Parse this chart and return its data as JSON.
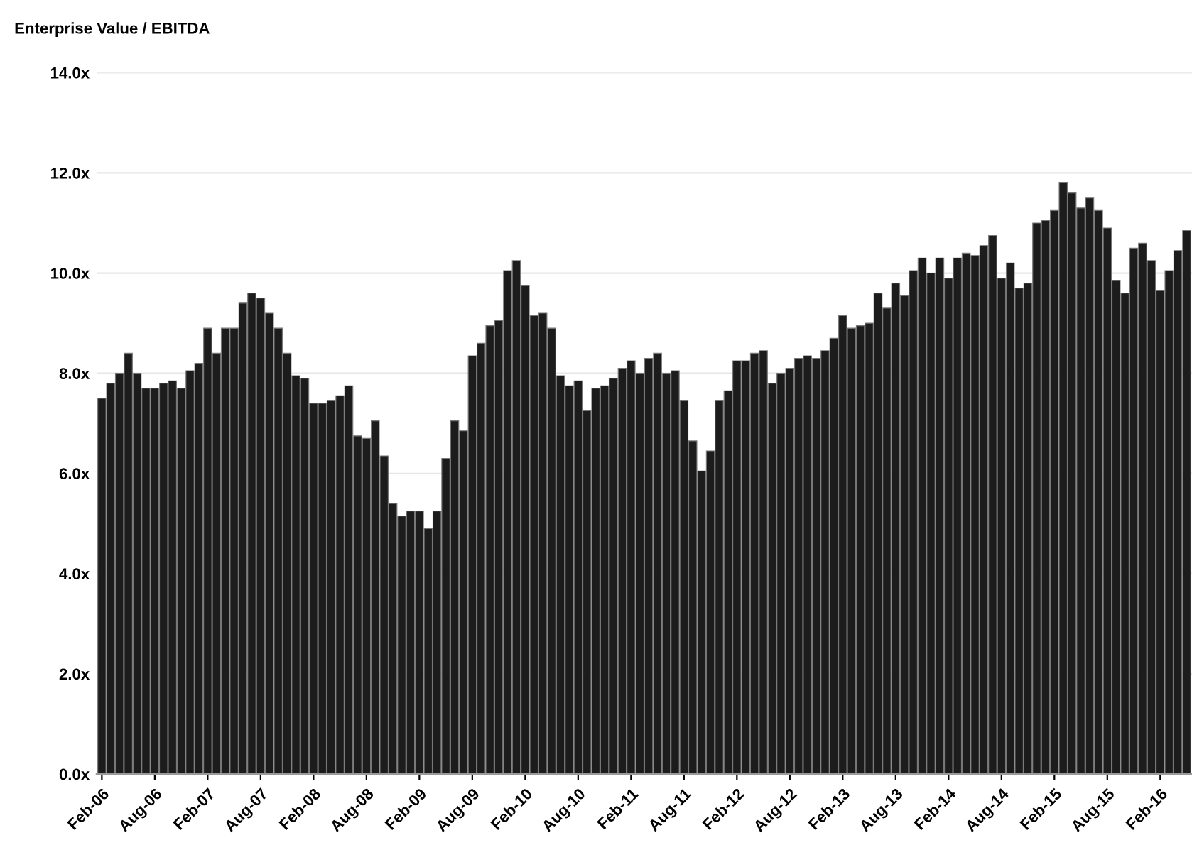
{
  "chart_data": {
    "type": "bar",
    "title": "Enterprise Value / EBITDA",
    "categories": [
      "Feb-06",
      null,
      null,
      null,
      null,
      null,
      "Aug-06",
      null,
      null,
      null,
      null,
      null,
      "Feb-07",
      null,
      null,
      null,
      null,
      null,
      "Aug-07",
      null,
      null,
      null,
      null,
      null,
      "Feb-08",
      null,
      null,
      null,
      null,
      null,
      "Aug-08",
      null,
      null,
      null,
      null,
      null,
      "Feb-09",
      null,
      null,
      null,
      null,
      null,
      "Aug-09",
      null,
      null,
      null,
      null,
      null,
      "Feb-10",
      null,
      null,
      null,
      null,
      null,
      "Aug-10",
      null,
      null,
      null,
      null,
      null,
      "Feb-11",
      null,
      null,
      null,
      null,
      null,
      "Aug-11",
      null,
      null,
      null,
      null,
      null,
      "Feb-12",
      null,
      null,
      null,
      null,
      null,
      "Aug-12",
      null,
      null,
      null,
      null,
      null,
      "Feb-13",
      null,
      null,
      null,
      null,
      null,
      "Aug-13",
      null,
      null,
      null,
      null,
      null,
      "Feb-14",
      null,
      null,
      null,
      null,
      null,
      "Aug-14",
      null,
      null,
      null,
      null,
      null,
      "Feb-15",
      null,
      null,
      null,
      null,
      null,
      "Aug-15",
      null,
      null,
      null,
      null,
      null,
      "Feb-16",
      null,
      null,
      null
    ],
    "values": [
      7.5,
      7.8,
      8.0,
      8.4,
      8.0,
      7.7,
      7.7,
      7.8,
      7.85,
      7.7,
      8.05,
      8.2,
      8.9,
      8.4,
      8.9,
      8.9,
      9.4,
      9.6,
      9.5,
      9.2,
      8.9,
      8.4,
      7.95,
      7.9,
      7.4,
      7.4,
      7.45,
      7.55,
      7.75,
      6.75,
      6.7,
      7.05,
      6.35,
      5.4,
      5.15,
      5.25,
      5.25,
      4.9,
      5.25,
      6.3,
      7.05,
      6.85,
      8.35,
      8.6,
      8.95,
      9.05,
      10.05,
      10.25,
      9.75,
      9.15,
      9.2,
      8.9,
      7.95,
      7.75,
      7.85,
      7.25,
      7.7,
      7.75,
      7.9,
      8.1,
      8.25,
      8.0,
      8.3,
      8.4,
      8.0,
      8.05,
      7.45,
      6.65,
      6.05,
      6.45,
      7.45,
      7.65,
      8.25,
      8.25,
      8.4,
      8.45,
      7.8,
      8.0,
      8.1,
      8.3,
      8.35,
      8.3,
      8.45,
      8.7,
      9.15,
      8.9,
      8.95,
      9.0,
      9.6,
      9.3,
      9.8,
      9.55,
      10.05,
      10.3,
      10.0,
      10.3,
      9.9,
      10.3,
      10.4,
      10.35,
      10.55,
      10.75,
      9.9,
      10.2,
      9.7,
      9.8,
      11.0,
      11.05,
      11.25,
      11.8,
      11.6,
      11.3,
      11.5,
      11.25,
      10.9,
      9.85,
      9.6,
      10.5,
      10.6,
      10.25,
      9.65,
      10.05,
      10.45,
      10.85
    ],
    "color": "#1c1c1c",
    "ylim": [
      0,
      14
    ],
    "yticks": [
      {
        "value": 0,
        "label": "0.0x"
      },
      {
        "value": 2,
        "label": "2.0x"
      },
      {
        "value": 4,
        "label": "4.0x"
      },
      {
        "value": 6,
        "label": "6.0x"
      },
      {
        "value": 8,
        "label": "8.0x"
      },
      {
        "value": 10,
        "label": "10.0x"
      },
      {
        "value": 12,
        "label": "12.0x"
      },
      {
        "value": 14,
        "label": "14.0x"
      }
    ],
    "grid": "y"
  }
}
